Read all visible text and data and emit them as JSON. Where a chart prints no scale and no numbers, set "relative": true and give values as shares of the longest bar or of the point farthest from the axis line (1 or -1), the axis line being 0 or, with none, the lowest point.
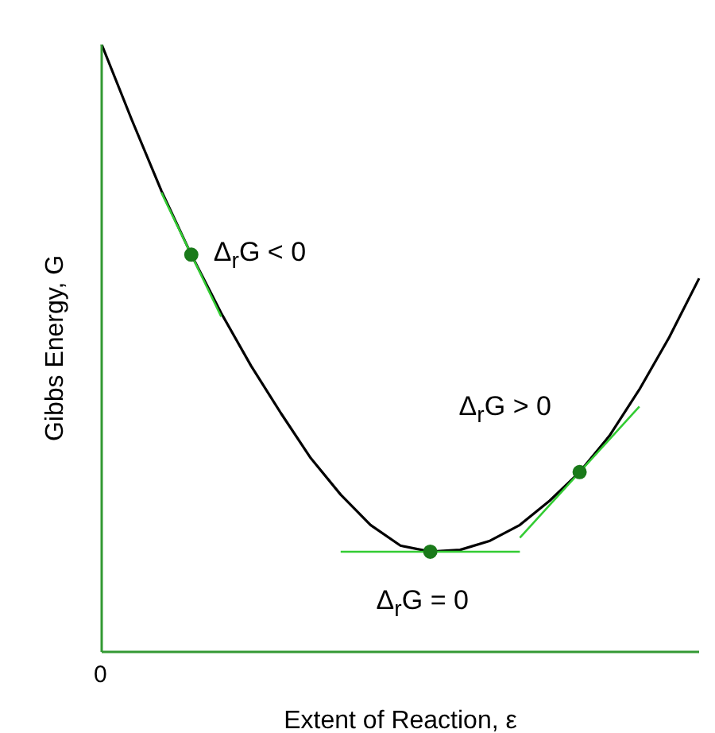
{
  "chart_data": {
    "type": "line",
    "relative": true,
    "xlabel": "Extent of Reaction, ε",
    "ylabel": "Gibbs Energy, G",
    "categories": [
      null,
      null,
      null,
      null,
      null,
      null,
      null,
      null,
      null,
      null,
      null,
      null,
      null,
      null,
      null,
      null,
      null,
      null,
      null,
      null,
      null
    ],
    "series": [
      {
        "color": "#000000",
        "values": [
          1.0,
          0.877,
          0.759,
          0.654,
          0.558,
          0.471,
          0.393,
          0.319,
          0.259,
          0.209,
          0.175,
          0.165,
          0.168,
          0.183,
          0.209,
          0.249,
          0.296,
          0.356,
          0.432,
          0.518,
          0.615
        ]
      },
      {
        "color": "#33cc33",
        "values": [
          null,
          null,
          0.756,
          0.654,
          0.552,
          null,
          null,
          null,
          null,
          null,
          null,
          null,
          null,
          null,
          null,
          null,
          null,
          null,
          null,
          null,
          null
        ]
      },
      {
        "color": "#33cc33",
        "values": [
          null,
          null,
          null,
          null,
          null,
          null,
          null,
          null,
          0.165,
          0.165,
          0.165,
          0.165,
          0.165,
          0.165,
          0.165,
          null,
          null,
          null,
          null,
          null,
          null
        ]
      },
      {
        "color": "#33cc33",
        "values": [
          null,
          null,
          null,
          null,
          null,
          null,
          null,
          null,
          null,
          null,
          null,
          null,
          null,
          null,
          0.188,
          0.242,
          0.296,
          0.35,
          0.404,
          null,
          null
        ]
      }
    ],
    "annotations": [
      "Δ$_{r}$G < 0",
      "Δ$_{r}$G = 0",
      "Δ$_{r}$G > 0",
      "0"
    ]
  }
}
